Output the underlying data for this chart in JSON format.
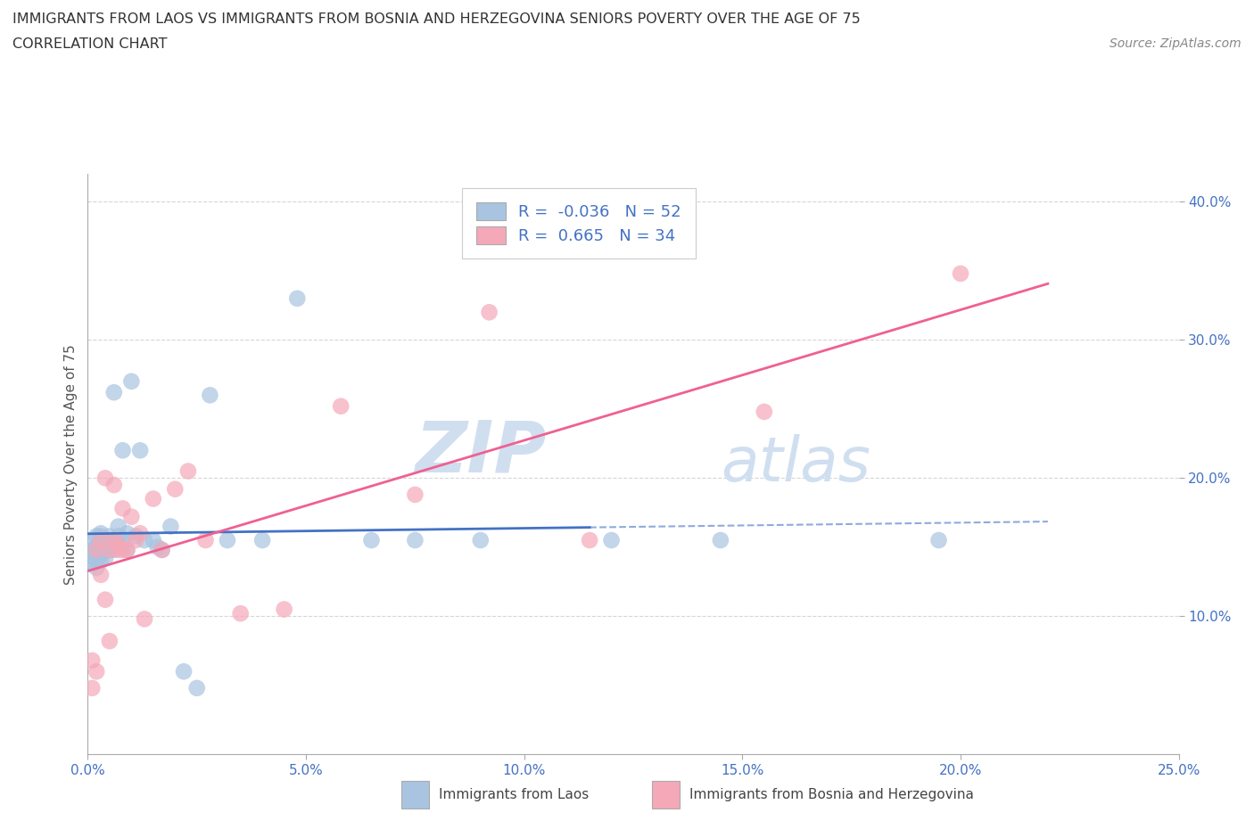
{
  "title_line1": "IMMIGRANTS FROM LAOS VS IMMIGRANTS FROM BOSNIA AND HERZEGOVINA SENIORS POVERTY OVER THE AGE OF 75",
  "title_line2": "CORRELATION CHART",
  "source_text": "Source: ZipAtlas.com",
  "ylabel": "Seniors Poverty Over the Age of 75",
  "xlim": [
    0.0,
    0.25
  ],
  "ylim": [
    0.0,
    0.42
  ],
  "laos_color": "#a8c4e0",
  "bosnia_color": "#f4a8b8",
  "laos_line_color": "#4472c4",
  "bosnia_line_color": "#f06090",
  "laos_R": -0.036,
  "laos_N": 52,
  "bosnia_R": 0.665,
  "bosnia_N": 34,
  "legend_label_laos": "Immigrants from Laos",
  "legend_label_bosnia": "Immigrants from Bosnia and Herzegovina",
  "watermark_zip": "ZIP",
  "watermark_atlas": "atlas",
  "watermark_color": "#d0dff0",
  "laos_x": [
    0.001,
    0.001,
    0.001,
    0.001,
    0.002,
    0.002,
    0.002,
    0.002,
    0.002,
    0.003,
    0.003,
    0.003,
    0.003,
    0.003,
    0.003,
    0.004,
    0.004,
    0.004,
    0.004,
    0.005,
    0.005,
    0.005,
    0.006,
    0.006,
    0.006,
    0.007,
    0.007,
    0.007,
    0.008,
    0.008,
    0.009,
    0.009,
    0.01,
    0.011,
    0.012,
    0.013,
    0.015,
    0.016,
    0.017,
    0.019,
    0.022,
    0.025,
    0.028,
    0.032,
    0.04,
    0.048,
    0.065,
    0.075,
    0.09,
    0.12,
    0.145,
    0.195
  ],
  "laos_y": [
    0.155,
    0.148,
    0.143,
    0.138,
    0.158,
    0.15,
    0.145,
    0.14,
    0.135,
    0.16,
    0.158,
    0.152,
    0.148,
    0.145,
    0.14,
    0.155,
    0.15,
    0.147,
    0.142,
    0.158,
    0.152,
    0.148,
    0.262,
    0.155,
    0.148,
    0.165,
    0.158,
    0.152,
    0.22,
    0.155,
    0.16,
    0.148,
    0.27,
    0.158,
    0.22,
    0.155,
    0.155,
    0.15,
    0.148,
    0.165,
    0.06,
    0.048,
    0.26,
    0.155,
    0.155,
    0.33,
    0.155,
    0.155,
    0.155,
    0.155,
    0.155,
    0.155
  ],
  "bosnia_x": [
    0.001,
    0.001,
    0.002,
    0.002,
    0.003,
    0.003,
    0.004,
    0.004,
    0.005,
    0.005,
    0.006,
    0.006,
    0.007,
    0.007,
    0.008,
    0.008,
    0.009,
    0.01,
    0.011,
    0.012,
    0.013,
    0.015,
    0.017,
    0.02,
    0.023,
    0.027,
    0.035,
    0.045,
    0.058,
    0.075,
    0.092,
    0.115,
    0.155,
    0.2
  ],
  "bosnia_y": [
    0.068,
    0.048,
    0.148,
    0.06,
    0.155,
    0.13,
    0.2,
    0.112,
    0.148,
    0.082,
    0.195,
    0.155,
    0.152,
    0.148,
    0.178,
    0.148,
    0.148,
    0.172,
    0.155,
    0.16,
    0.098,
    0.185,
    0.148,
    0.192,
    0.205,
    0.155,
    0.102,
    0.105,
    0.252,
    0.188,
    0.32,
    0.155,
    0.248,
    0.348
  ]
}
